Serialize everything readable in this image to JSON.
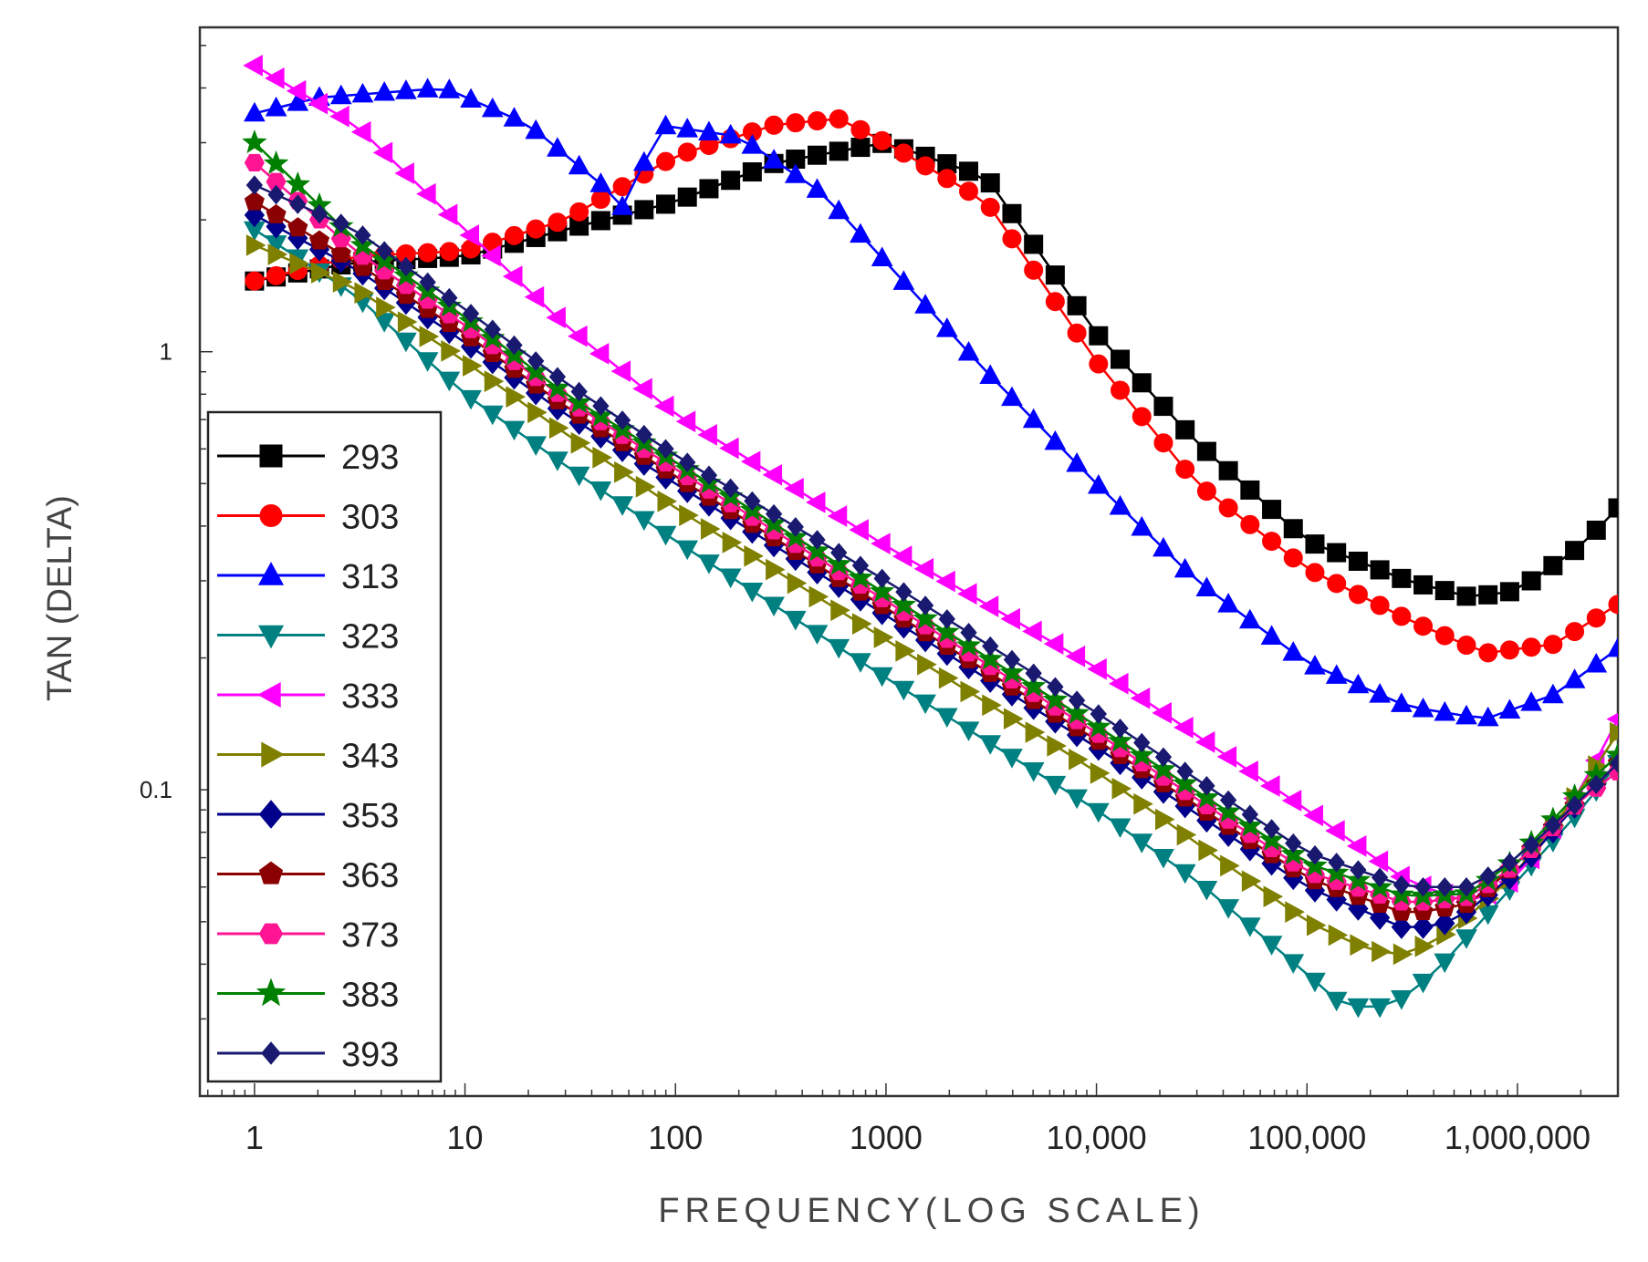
{
  "chart_data": {
    "type": "line",
    "title": "",
    "xlabel": "FREQUENCY(LOG SCALE)",
    "ylabel": "TAN (DELTA)",
    "x_scale": "log",
    "y_scale": "log",
    "xlim": [
      0.55,
      3000000
    ],
    "ylim": [
      0.02,
      5.5
    ],
    "xticks": [
      {
        "value": 1,
        "label": "1"
      },
      {
        "value": 10,
        "label": "10"
      },
      {
        "value": 100,
        "label": "100"
      },
      {
        "value": 1000,
        "label": "1000"
      },
      {
        "value": 10000,
        "label": "10,000"
      },
      {
        "value": 100000,
        "label": "100,000"
      },
      {
        "value": 1000000,
        "label": "1,000,000"
      }
    ],
    "yticks": [
      {
        "value": 1,
        "label": "1"
      },
      {
        "value": 0.1,
        "label": "0.1"
      }
    ],
    "legend_position": "left",
    "series": [
      {
        "name": "293",
        "color": "#000000",
        "marker": "square",
        "points": [
          [
            1,
            1.45
          ],
          [
            3,
            1.6
          ],
          [
            10,
            1.65
          ],
          [
            30,
            1.9
          ],
          [
            100,
            2.2
          ],
          [
            300,
            2.7
          ],
          [
            1000,
            3.0
          ],
          [
            3000,
            2.5
          ],
          [
            10000,
            1.1
          ],
          [
            30000,
            0.62
          ],
          [
            100000,
            0.37
          ],
          [
            300000,
            0.3
          ],
          [
            600000,
            0.275
          ],
          [
            1000000,
            0.285
          ],
          [
            2000000,
            0.36
          ],
          [
            3000000,
            0.44
          ]
        ]
      },
      {
        "name": "303",
        "color": "#ff0000",
        "marker": "circle",
        "points": [
          [
            1,
            1.45
          ],
          [
            3,
            1.65
          ],
          [
            10,
            1.7
          ],
          [
            30,
            2.0
          ],
          [
            100,
            2.8
          ],
          [
            300,
            3.3
          ],
          [
            600,
            3.4
          ],
          [
            1000,
            3.0
          ],
          [
            3000,
            2.2
          ],
          [
            10000,
            0.95
          ],
          [
            30000,
            0.5
          ],
          [
            100000,
            0.32
          ],
          [
            300000,
            0.245
          ],
          [
            700000,
            0.205
          ],
          [
            1500000,
            0.215
          ],
          [
            3000000,
            0.265
          ]
        ]
      },
      {
        "name": "313",
        "color": "#0000ff",
        "marker": "triangle-up",
        "points": [
          [
            1,
            3.5
          ],
          [
            2,
            3.8
          ],
          [
            8,
            4.0
          ],
          [
            20,
            3.3
          ],
          [
            50,
            2.3
          ],
          [
            60,
            2.05
          ],
          [
            80,
            3.3
          ],
          [
            200,
            3.1
          ],
          [
            500,
            2.3
          ],
          [
            1000,
            1.6
          ],
          [
            3000,
            0.9
          ],
          [
            10000,
            0.5
          ],
          [
            30000,
            0.3
          ],
          [
            100000,
            0.195
          ],
          [
            300000,
            0.155
          ],
          [
            700000,
            0.145
          ],
          [
            1500000,
            0.165
          ],
          [
            3000000,
            0.21
          ]
        ]
      },
      {
        "name": "323",
        "color": "#008080",
        "marker": "triangle-down",
        "points": [
          [
            1,
            1.9
          ],
          [
            3,
            1.35
          ],
          [
            10,
            0.8
          ],
          [
            30,
            0.55
          ],
          [
            100,
            0.37
          ],
          [
            1000,
            0.18
          ],
          [
            10000,
            0.09
          ],
          [
            30000,
            0.062
          ],
          [
            100000,
            0.038
          ],
          [
            150000,
            0.032
          ],
          [
            250000,
            0.032
          ],
          [
            400000,
            0.038
          ],
          [
            800000,
            0.055
          ],
          [
            2000000,
            0.09
          ],
          [
            3000000,
            0.115
          ]
        ]
      },
      {
        "name": "333",
        "color": "#ff00ff",
        "marker": "triangle-left",
        "points": [
          [
            1,
            4.5
          ],
          [
            3,
            3.3
          ],
          [
            10,
            1.9
          ],
          [
            30,
            1.15
          ],
          [
            100,
            0.72
          ],
          [
            300,
            0.52
          ],
          [
            1000,
            0.36
          ],
          [
            10000,
            0.19
          ],
          [
            100000,
            0.09
          ],
          [
            300000,
            0.062
          ],
          [
            600000,
            0.055
          ],
          [
            1000000,
            0.063
          ],
          [
            2000000,
            0.1
          ],
          [
            3000000,
            0.145
          ]
        ]
      },
      {
        "name": "343",
        "color": "#808000",
        "marker": "triangle-right",
        "points": [
          [
            1,
            1.75
          ],
          [
            3,
            1.4
          ],
          [
            10,
            0.95
          ],
          [
            30,
            0.65
          ],
          [
            100,
            0.44
          ],
          [
            1000,
            0.22
          ],
          [
            10000,
            0.11
          ],
          [
            100000,
            0.05
          ],
          [
            200000,
            0.043
          ],
          [
            300000,
            0.042
          ],
          [
            500000,
            0.048
          ],
          [
            1000000,
            0.065
          ],
          [
            2000000,
            0.1
          ],
          [
            3000000,
            0.135
          ]
        ]
      },
      {
        "name": "353",
        "color": "#00008b",
        "marker": "diamond",
        "points": [
          [
            1,
            2.05
          ],
          [
            3,
            1.55
          ],
          [
            10,
            1.05
          ],
          [
            30,
            0.72
          ],
          [
            100,
            0.5
          ],
          [
            1000,
            0.25
          ],
          [
            10000,
            0.125
          ],
          [
            100000,
            0.06
          ],
          [
            300000,
            0.048
          ],
          [
            500000,
            0.05
          ],
          [
            1000000,
            0.065
          ],
          [
            2000000,
            0.095
          ],
          [
            3000000,
            0.115
          ]
        ]
      },
      {
        "name": "363",
        "color": "#8b0000",
        "marker": "pentagon",
        "points": [
          [
            1,
            2.2
          ],
          [
            3,
            1.6
          ],
          [
            10,
            1.1
          ],
          [
            30,
            0.75
          ],
          [
            100,
            0.52
          ],
          [
            1000,
            0.26
          ],
          [
            10000,
            0.13
          ],
          [
            100000,
            0.063
          ],
          [
            300000,
            0.052
          ],
          [
            600000,
            0.055
          ],
          [
            1000000,
            0.068
          ],
          [
            2000000,
            0.095
          ],
          [
            3000000,
            0.115
          ]
        ]
      },
      {
        "name": "373",
        "color": "#ff1493",
        "marker": "hexagon",
        "points": [
          [
            1,
            2.7
          ],
          [
            3,
            1.7
          ],
          [
            10,
            1.15
          ],
          [
            30,
            0.78
          ],
          [
            100,
            0.54
          ],
          [
            1000,
            0.27
          ],
          [
            10000,
            0.135
          ],
          [
            100000,
            0.065
          ],
          [
            300000,
            0.055
          ],
          [
            600000,
            0.057
          ],
          [
            1000000,
            0.068
          ],
          [
            2000000,
            0.095
          ],
          [
            3000000,
            0.11
          ]
        ]
      },
      {
        "name": "383",
        "color": "#008000",
        "marker": "star",
        "points": [
          [
            1,
            3.0
          ],
          [
            3,
            1.8
          ],
          [
            10,
            1.2
          ],
          [
            30,
            0.8
          ],
          [
            100,
            0.56
          ],
          [
            1000,
            0.28
          ],
          [
            10000,
            0.14
          ],
          [
            100000,
            0.068
          ],
          [
            300000,
            0.057
          ],
          [
            600000,
            0.058
          ],
          [
            1000000,
            0.07
          ],
          [
            2000000,
            0.1
          ],
          [
            3000000,
            0.12
          ]
        ]
      },
      {
        "name": "393",
        "color": "#191970",
        "marker": "diamond-small",
        "points": [
          [
            1,
            2.4
          ],
          [
            3,
            1.9
          ],
          [
            10,
            1.25
          ],
          [
            30,
            0.85
          ],
          [
            100,
            0.58
          ],
          [
            1000,
            0.3
          ],
          [
            10000,
            0.15
          ],
          [
            100000,
            0.072
          ],
          [
            300000,
            0.06
          ],
          [
            600000,
            0.06
          ],
          [
            1000000,
            0.07
          ],
          [
            2000000,
            0.095
          ],
          [
            3000000,
            0.115
          ]
        ]
      }
    ]
  }
}
